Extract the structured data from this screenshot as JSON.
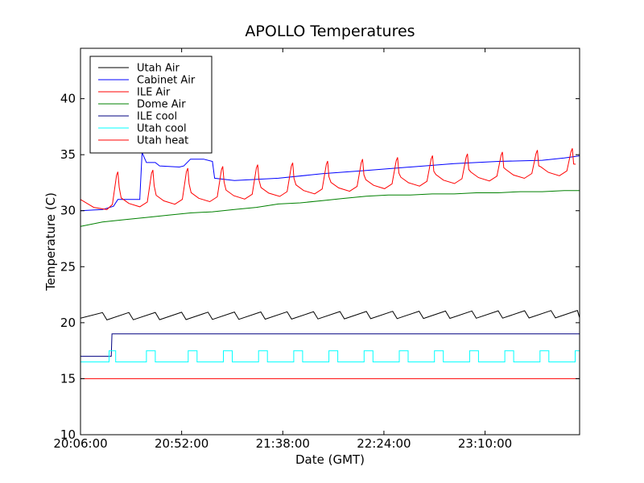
{
  "chart_data": {
    "type": "line",
    "title": "APOLLO Temperatures",
    "xlabel": "Date (GMT)",
    "ylabel": "Temperature (C)",
    "xlim": [
      0,
      227
    ],
    "ylim": [
      10,
      44.5
    ],
    "x_ticks": [
      {
        "value": 0,
        "label": "20:06:00"
      },
      {
        "value": 46,
        "label": "20:52:00"
      },
      {
        "value": 92,
        "label": "21:38:00"
      },
      {
        "value": 138,
        "label": "22:24:00"
      },
      {
        "value": 184,
        "label": "23:10:00"
      }
    ],
    "y_ticks": [
      10,
      15,
      20,
      25,
      30,
      35,
      40
    ],
    "legend_position": "upper-left",
    "series": [
      {
        "name": "Utah Air",
        "color": "#000000",
        "kind": "sawtooth",
        "start": 20.4,
        "peak_start": 20.9,
        "peak_end": 21.1,
        "rise": 10,
        "fall": 2,
        "end": 227
      },
      {
        "name": "Cabinet Air",
        "color": "#0000ff",
        "points": [
          [
            0,
            30.0
          ],
          [
            10,
            30.1
          ],
          [
            15,
            30.4
          ],
          [
            17,
            31.0
          ],
          [
            27,
            31.0
          ],
          [
            27,
            31.1
          ],
          [
            28,
            35.2
          ],
          [
            30,
            34.3
          ],
          [
            34,
            34.3
          ],
          [
            36,
            34.0
          ],
          [
            45,
            33.9
          ],
          [
            47,
            34.0
          ],
          [
            50,
            34.6
          ],
          [
            56,
            34.6
          ],
          [
            60,
            34.4
          ],
          [
            61,
            32.9
          ],
          [
            70,
            32.7
          ],
          [
            90,
            32.9
          ],
          [
            110,
            33.3
          ],
          [
            130,
            33.6
          ],
          [
            150,
            33.9
          ],
          [
            170,
            34.2
          ],
          [
            190,
            34.4
          ],
          [
            210,
            34.5
          ],
          [
            220,
            34.7
          ],
          [
            227,
            34.9
          ]
        ]
      },
      {
        "name": "ILE Air",
        "color": "#ff0000",
        "kind": "spiky",
        "base_start": 30.0,
        "base_end": 33.3,
        "peak_start": 33.3,
        "peak_end": 35.6,
        "start": 31.0,
        "first_peak_x": 17,
        "period": 15.9,
        "end": 227
      },
      {
        "name": "Dome Air",
        "color": "#008000",
        "points": [
          [
            0,
            28.6
          ],
          [
            10,
            29.0
          ],
          [
            20,
            29.2
          ],
          [
            30,
            29.4
          ],
          [
            40,
            29.6
          ],
          [
            50,
            29.8
          ],
          [
            60,
            29.9
          ],
          [
            70,
            30.1
          ],
          [
            80,
            30.3
          ],
          [
            90,
            30.6
          ],
          [
            100,
            30.7
          ],
          [
            110,
            30.9
          ],
          [
            120,
            31.1
          ],
          [
            130,
            31.3
          ],
          [
            140,
            31.4
          ],
          [
            150,
            31.4
          ],
          [
            160,
            31.5
          ],
          [
            170,
            31.5
          ],
          [
            180,
            31.6
          ],
          [
            190,
            31.6
          ],
          [
            200,
            31.7
          ],
          [
            210,
            31.7
          ],
          [
            220,
            31.8
          ],
          [
            227,
            31.8
          ]
        ]
      },
      {
        "name": "ILE cool",
        "color": "#000080",
        "points": [
          [
            0,
            17.0
          ],
          [
            14,
            17.0
          ],
          [
            14.3,
            19.0
          ],
          [
            227,
            19.0
          ]
        ]
      },
      {
        "name": "Utah cool",
        "color": "#00ffff",
        "kind": "pulses",
        "low": 16.5,
        "high": 17.5,
        "starts": [
          13,
          30,
          49,
          65,
          81,
          97,
          113,
          129,
          145,
          161,
          177,
          193,
          209,
          225
        ],
        "widths": [
          3,
          4,
          4,
          4,
          4,
          4,
          4,
          4,
          4,
          4,
          4,
          4,
          4,
          2
        ],
        "end": 227
      },
      {
        "name": "Utah heat",
        "color": "#ff0000",
        "points": [
          [
            0,
            15.0
          ],
          [
            227,
            15.0
          ]
        ]
      }
    ]
  }
}
